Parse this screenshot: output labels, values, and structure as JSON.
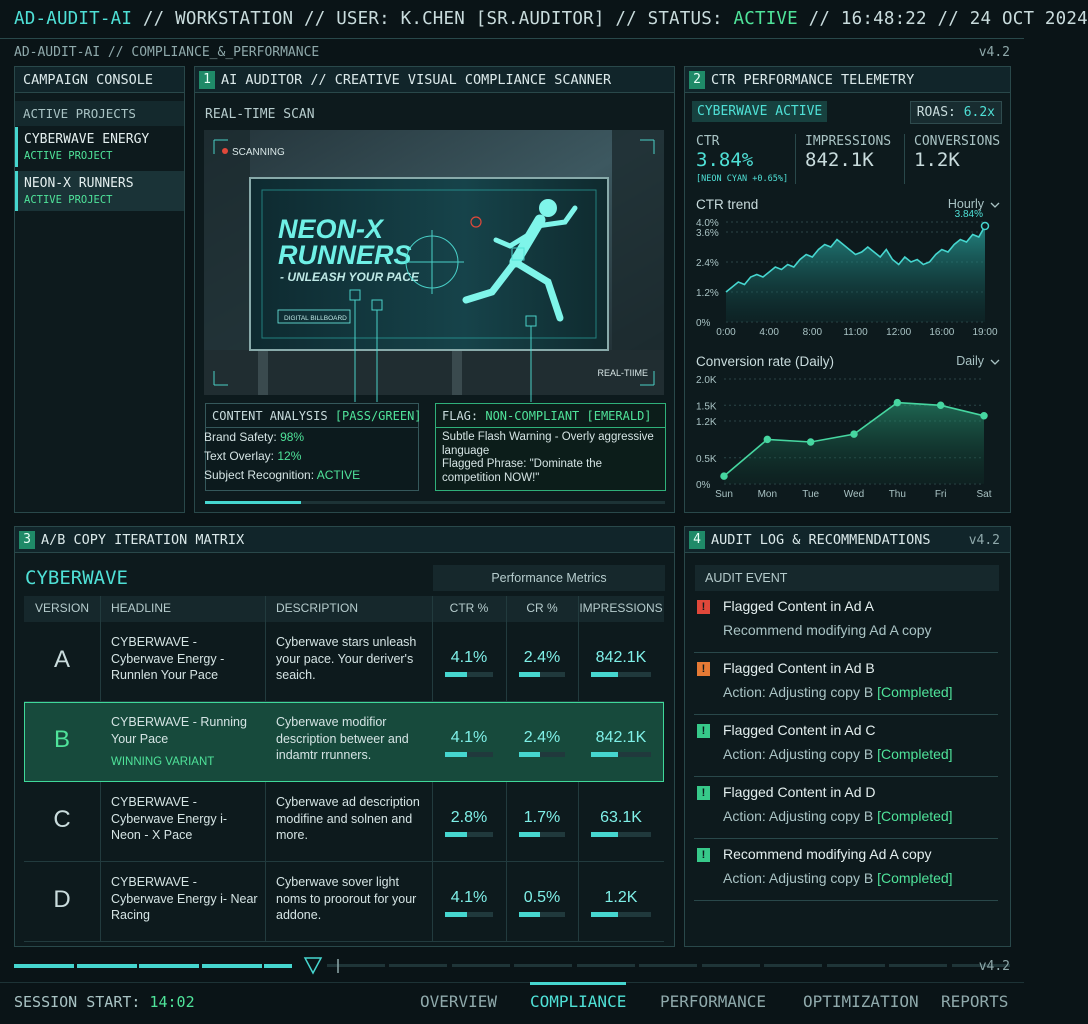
{
  "header": {
    "app": "AD-AUDIT-AI",
    "separator": "//",
    "workstation": "WORKSTATION",
    "user": "USER: K.CHEN [SR.AUDITOR]",
    "status_label": "STATUS:",
    "status": "ACTIVE",
    "time": "16:48:22",
    "date": "24 OCT 2024"
  },
  "subheader": {
    "path": "AD-AUDIT-AI // COMPLIANCE_&_PERFORMANCE",
    "version": "v4.2"
  },
  "console": {
    "title": "CAMPAIGN CONSOLE",
    "section": "ACTIVE PROJECTS",
    "projects": [
      {
        "name": "CYBERWAVE ENERGY",
        "status": "ACTIVE PROJECT"
      },
      {
        "name": "NEON-X RUNNERS",
        "status": "ACTIVE PROJECT"
      }
    ]
  },
  "scanner": {
    "number": "1",
    "title": "AI AUDITOR // CREATIVE VISUAL COMPLIANCE SCANNER",
    "subtitle": "REAL-TIME SCAN",
    "image": {
      "scanning": "SCANNING",
      "headline_1": "NEON-X",
      "headline_2": "RUNNERS",
      "tagline": "- UNLEASH YOUR PACE",
      "badge": "DIGITAL BILLBOARD",
      "realtime": "REAL-TIIME"
    },
    "analysis": {
      "title": "CONTENT ANALYSIS",
      "result": "[PASS/GREEN]",
      "items": [
        {
          "label": "Brand Safety:",
          "value": "98%"
        },
        {
          "label": "Text Overlay:",
          "value": "12%"
        },
        {
          "label": "Subject Recognition:",
          "value": "ACTIVE"
        }
      ]
    },
    "flag": {
      "label": "FLAG:",
      "result": "NON-COMPLIANT [EMERALD]",
      "lines": [
        "Subtle Flash Warning - Overly aggressive language",
        "Flagged Phrase: \"Dominate the competition NOW!\""
      ]
    }
  },
  "telemetry": {
    "number": "2",
    "title": "CTR PERFORMANCE TELEMETRY",
    "campaign": "CYBERWAVE ACTIVE",
    "roas_label": "ROAS:",
    "roas": "6.2x",
    "metrics": [
      {
        "label": "CTR",
        "value": "3.84%",
        "note": "[NEON CYAN +0.65%]"
      },
      {
        "label": "IMPRESSIONS",
        "value": "842.1K"
      },
      {
        "label": "CONVERSIONS",
        "value": "1.2K"
      }
    ]
  },
  "chart_data": [
    {
      "type": "line",
      "title": "CTR trend",
      "period": "Hourly",
      "color": "#46d6cf",
      "grid": true,
      "categories": [
        "0:00",
        null,
        null,
        null,
        null,
        null,
        null,
        "4:00",
        null,
        null,
        null,
        null,
        null,
        null,
        "8:00",
        null,
        null,
        null,
        null,
        null,
        null,
        "11:00",
        null,
        null,
        null,
        null,
        null,
        null,
        "12:00",
        null,
        null,
        null,
        null,
        null,
        null,
        "16:00",
        null,
        null,
        null,
        null,
        null,
        null,
        "19:00"
      ],
      "values": [
        1.2,
        1.4,
        1.6,
        1.5,
        1.8,
        1.9,
        1.8,
        2.0,
        2.2,
        2.1,
        2.3,
        2.2,
        2.5,
        2.7,
        2.6,
        2.9,
        3.1,
        3.0,
        3.3,
        3.1,
        2.9,
        2.7,
        2.8,
        3.0,
        2.8,
        2.6,
        2.9,
        2.5,
        2.3,
        2.6,
        2.4,
        2.5,
        2.3,
        2.4,
        2.7,
        2.9,
        2.8,
        3.1,
        3.3,
        3.2,
        3.5,
        3.4,
        3.84
      ],
      "value_labels": [
        null,
        null,
        null,
        null,
        null,
        null,
        null,
        null,
        null,
        null,
        null,
        null,
        null,
        null,
        null,
        null,
        null,
        null,
        null,
        null,
        null,
        null,
        null,
        null,
        null,
        null,
        null,
        null,
        null,
        null,
        null,
        null,
        null,
        null,
        null,
        null,
        null,
        null,
        null,
        null,
        null,
        null,
        "3.84%"
      ],
      "ylim": [
        0,
        4.0
      ],
      "yticks": [
        {
          "value": 0,
          "label": "0%"
        },
        {
          "value": 1.2,
          "label": "1.2%"
        },
        {
          "value": 2.4,
          "label": "2.4%"
        },
        {
          "value": 3.6,
          "label": "3.6%"
        },
        {
          "value": 4.0,
          "label": "4.0%"
        }
      ]
    },
    {
      "type": "line",
      "title": "Conversion rate (Daily)",
      "period": "Daily",
      "color": "#46d6a0",
      "grid": true,
      "categories": [
        "Sun",
        "Mon",
        "Tue",
        "Wed",
        "Thu",
        "Fri",
        "Sat"
      ],
      "values": [
        150,
        850,
        800,
        950,
        1550,
        1500,
        1300
      ],
      "ylim": [
        0,
        2000
      ],
      "yticks": [
        {
          "value": 0,
          "label": "0%"
        },
        {
          "value": 500,
          "label": "0.5K"
        },
        {
          "value": 1200,
          "label": "1.2K"
        },
        {
          "value": 1500,
          "label": "1.5K"
        },
        {
          "value": 2000,
          "label": "2.0K"
        }
      ]
    }
  ],
  "ab_matrix": {
    "number": "3",
    "title": "A/B COPY ITERATION MATRIX",
    "brand": "CYBERWAVE",
    "group": "Performance Metrics",
    "columns": [
      "VERSION",
      "HEADLINE",
      "DESCRIPTION",
      "CTR %",
      "CR %",
      "IMPRESSIONS"
    ],
    "rows": [
      {
        "version": "A",
        "headline": "CYBERWAVE - Cyberwave Energy - Runnlen Your Pace",
        "description": "Cyberwave stars unleash your pace. Your deriver's seaich.",
        "ctr": "4.1%",
        "cr": "2.4%",
        "impressions": "842.1K"
      },
      {
        "version": "B",
        "headline": "CYBERWAVE - Running Your Pace",
        "tag": "WINNING VARIANT",
        "description": "Cyberwave modifior description betweer and indamtr rrunners.",
        "ctr": "4.1%",
        "cr": "2.4%",
        "impressions": "842.1K"
      },
      {
        "version": "C",
        "headline": "CYBERWAVE - Cyberwave Energy i- Neon - X Pace",
        "description": "Cyberwave ad description modifine and solnen and more.",
        "ctr": "2.8%",
        "cr": "1.7%",
        "impressions": "63.1K"
      },
      {
        "version": "D",
        "headline": "CYBERWAVE - Cyberwave Energy i- Near Racing",
        "description": "Cyberwave sover light noms to proorout for your addone.",
        "ctr": "4.1%",
        "cr": "0.5%",
        "impressions": "1.2K"
      }
    ]
  },
  "audit_log": {
    "number": "4",
    "title": "AUDIT LOG & RECOMMENDATIONS",
    "column": "AUDIT EVENT",
    "icon": "!",
    "events": [
      {
        "title": "Flagged Content in Ad A",
        "detail": "Recommend modifying Ad A copy",
        "color": "#e0483a"
      },
      {
        "title": "Flagged Content in Ad B",
        "detail": "Action: Adjusting copy B",
        "status": "[Completed]",
        "color": "#e57a35"
      },
      {
        "title": "Flagged Content in Ad C",
        "detail": "Action: Adjusting copy B",
        "status": "[Completed]",
        "color": "#37c98a"
      },
      {
        "title": "Flagged Content in Ad D",
        "detail": "Action: Adjusting copy B",
        "status": "[Completed]",
        "color": "#37c98a"
      },
      {
        "title": "Recommend modifying Ad A copy",
        "detail": "Action: Adjusting copy B",
        "status": "[Completed]",
        "color": "#37c98a"
      }
    ]
  },
  "footer": {
    "session_label": "SESSION START:",
    "session": "14:02",
    "tabs": [
      "OVERVIEW",
      "COMPLIANCE",
      "PERFORMANCE",
      "OPTIMIZATION",
      "REPORTS"
    ],
    "active_tab": 1
  }
}
